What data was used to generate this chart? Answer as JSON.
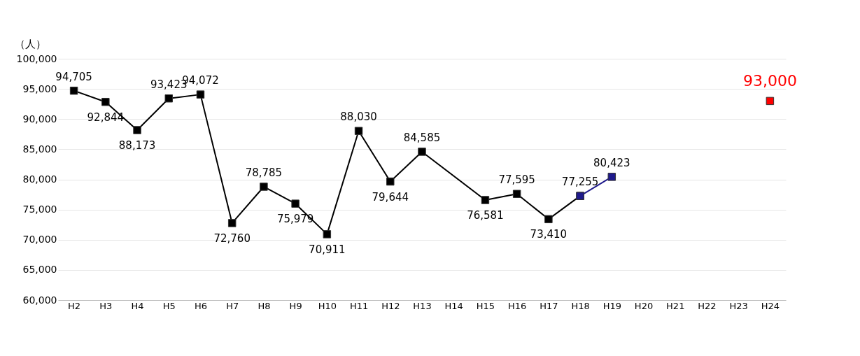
{
  "chart_data": {
    "type": "line",
    "ylabel": "（人）",
    "categories": [
      "H2",
      "H3",
      "H4",
      "H5",
      "H6",
      "H7",
      "H8",
      "H9",
      "H10",
      "H11",
      "H12",
      "H13",
      "H14",
      "H15",
      "H16",
      "H17",
      "H18",
      "H19",
      "H20",
      "H21",
      "H22",
      "H23",
      "H24"
    ],
    "series": [
      {
        "color": "#000000",
        "values": [
          94705,
          92844,
          88173,
          93423,
          94072,
          72760,
          78785,
          75979,
          70911,
          88030,
          79644,
          84585,
          null,
          76581,
          77595,
          73410,
          77255,
          null,
          null,
          null,
          null,
          null,
          null
        ],
        "value_labels": [
          "94,705",
          "92,844",
          "88,173",
          "93,423",
          "94,072",
          "72,760",
          "78,785",
          "75,979",
          "70,911",
          "88,030",
          "79,644",
          "84,585",
          null,
          "76,581",
          "77,595",
          "73,410",
          "77,255",
          null,
          null,
          null,
          null,
          null,
          null
        ]
      },
      {
        "color": "#1f1a8c",
        "values": [
          null,
          null,
          null,
          null,
          null,
          null,
          null,
          null,
          null,
          null,
          null,
          null,
          null,
          null,
          null,
          null,
          77255,
          80423,
          null,
          null,
          null,
          null,
          null
        ],
        "value_labels": [
          null,
          null,
          null,
          null,
          null,
          null,
          null,
          null,
          null,
          null,
          null,
          null,
          null,
          null,
          null,
          null,
          null,
          "80,423",
          null,
          null,
          null,
          null,
          null
        ]
      },
      {
        "type": "scatter",
        "color": "#ff0000",
        "values": [
          null,
          null,
          null,
          null,
          null,
          null,
          null,
          null,
          null,
          null,
          null,
          null,
          null,
          null,
          null,
          null,
          null,
          null,
          null,
          null,
          null,
          null,
          93000
        ],
        "value_labels": [
          null,
          null,
          null,
          null,
          null,
          null,
          null,
          null,
          null,
          null,
          null,
          null,
          null,
          null,
          null,
          null,
          null,
          null,
          null,
          null,
          null,
          null,
          "93,000"
        ]
      }
    ],
    "ylim": [
      60000,
      100000
    ],
    "yticks": [
      {
        "value": 60000,
        "label": "60,000"
      },
      {
        "value": 65000,
        "label": "65,000"
      },
      {
        "value": 70000,
        "label": "70,000"
      },
      {
        "value": 75000,
        "label": "75,000"
      },
      {
        "value": 80000,
        "label": "80,000"
      },
      {
        "value": 85000,
        "label": "85,000"
      },
      {
        "value": 90000,
        "label": "90,000"
      },
      {
        "value": 95000,
        "label": "95,000"
      },
      {
        "value": 100000,
        "label": "100,000"
      }
    ],
    "grid": "y",
    "marker": "square",
    "line_style": "solid",
    "legend": false
  }
}
